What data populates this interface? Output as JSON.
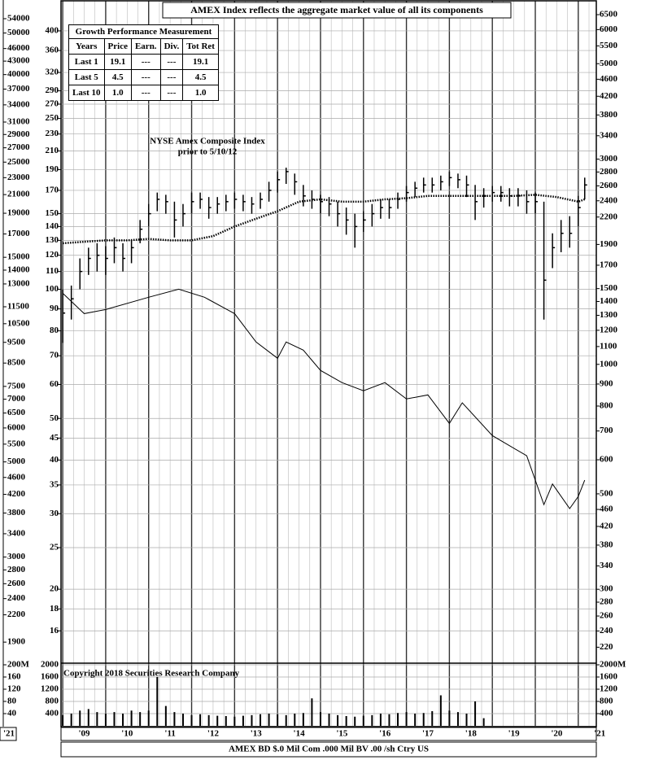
{
  "chart_data": {
    "type": "stock",
    "title": "AMEX Index reflects the aggregate market value of all its components",
    "annotation": [
      "NYSE Amex Composite Index",
      "prior to 5/10/12"
    ],
    "copyright": "Copyright 2018 Securities Research Company",
    "footer": "AMEX BD  $.0 Mil Com .000 Mil BV .00 /sh  Ctry US",
    "corner_label": "'21",
    "log_scale": true,
    "grid": true,
    "color": "#000000",
    "xlim": [
      2008.96,
      2021.42
    ],
    "xticks": [
      {
        "value": 2009,
        "label": "'09"
      },
      {
        "value": 2010,
        "label": "'10"
      },
      {
        "value": 2011,
        "label": "'11"
      },
      {
        "value": 2012,
        "label": "'12"
      },
      {
        "value": 2013,
        "label": "'13"
      },
      {
        "value": 2014,
        "label": "'14"
      },
      {
        "value": 2015,
        "label": "'15"
      },
      {
        "value": 2016,
        "label": "'16"
      },
      {
        "value": 2017,
        "label": "'17"
      },
      {
        "value": 2018,
        "label": "'18"
      },
      {
        "value": 2019,
        "label": "'19"
      },
      {
        "value": 2020,
        "label": "'20"
      },
      {
        "value": 2021,
        "label": "'21"
      }
    ],
    "ylim": [
      13.45,
      470
    ],
    "yticks": [
      400,
      360,
      320,
      290,
      270,
      250,
      230,
      210,
      190,
      170,
      150,
      140,
      130,
      120,
      110,
      100,
      90,
      80,
      70,
      60,
      50,
      45,
      40,
      35,
      30,
      25,
      20,
      18,
      16
    ],
    "y2lim": [
      202,
      7000
    ],
    "y2ticks": [
      6500,
      6000,
      5500,
      5000,
      4600,
      4200,
      3800,
      3400,
      3000,
      2800,
      2600,
      2400,
      2200,
      1900,
      1700,
      1500,
      1400,
      1300,
      1200,
      1100,
      1000,
      900,
      800,
      700,
      600,
      500,
      460,
      420,
      380,
      340,
      300,
      280,
      260,
      240,
      220
    ],
    "y3lim": [
      1697,
      59440
    ],
    "y3ticks": [
      54000,
      50000,
      46000,
      43000,
      40000,
      37000,
      34000,
      31000,
      29000,
      27000,
      25000,
      23000,
      21000,
      19000,
      17000,
      15000,
      14000,
      13000,
      11500,
      10500,
      9500,
      8500,
      7500,
      7000,
      6500,
      6000,
      5500,
      5000,
      4600,
      4200,
      3800,
      3400,
      3000,
      2800,
      2600,
      2400,
      2200,
      1900
    ],
    "x": [
      2009.0,
      2009.2,
      2009.4,
      2009.6,
      2009.8,
      2010.0,
      2010.2,
      2010.4,
      2010.6,
      2010.8,
      2011.0,
      2011.2,
      2011.4,
      2011.6,
      2011.8,
      2012.0,
      2012.2,
      2012.4,
      2012.6,
      2012.8,
      2013.0,
      2013.2,
      2013.4,
      2013.6,
      2013.8,
      2014.0,
      2014.2,
      2014.4,
      2014.6,
      2014.8,
      2015.0,
      2015.2,
      2015.4,
      2015.6,
      2015.8,
      2016.0,
      2016.2,
      2016.4,
      2016.6,
      2016.8,
      2017.0,
      2017.2,
      2017.4,
      2017.6,
      2017.8,
      2018.0,
      2018.2,
      2018.4,
      2018.6,
      2018.8,
      2019.0,
      2019.2,
      2019.4,
      2019.6,
      2019.8,
      2020.0,
      2020.2,
      2020.4,
      2020.6,
      2020.8,
      2021.0,
      2021.15
    ],
    "high": [
      100,
      102,
      118,
      125,
      128,
      126,
      132,
      128,
      130,
      145,
      158,
      168,
      166,
      160,
      158,
      168,
      168,
      164,
      164,
      166,
      168,
      166,
      164,
      168,
      178,
      188,
      192,
      186,
      175,
      170,
      166,
      164,
      160,
      155,
      150,
      152,
      158,
      162,
      162,
      168,
      174,
      178,
      182,
      182,
      184,
      188,
      186,
      184,
      175,
      172,
      174,
      174,
      172,
      172,
      170,
      168,
      160,
      135,
      145,
      148,
      165,
      182
    ],
    "low": [
      75,
      85,
      100,
      108,
      110,
      108,
      115,
      110,
      115,
      128,
      140,
      152,
      150,
      132,
      140,
      150,
      154,
      146,
      150,
      152,
      154,
      152,
      150,
      154,
      160,
      168,
      176,
      166,
      156,
      154,
      150,
      148,
      140,
      134,
      125,
      136,
      140,
      146,
      146,
      154,
      160,
      164,
      168,
      168,
      170,
      174,
      172,
      164,
      145,
      155,
      160,
      160,
      156,
      156,
      150,
      150,
      85,
      112,
      122,
      125,
      140,
      162
    ],
    "close": [
      88,
      95,
      110,
      118,
      120,
      118,
      125,
      118,
      125,
      138,
      150,
      162,
      160,
      145,
      150,
      160,
      162,
      155,
      158,
      160,
      162,
      160,
      158,
      162,
      170,
      180,
      188,
      178,
      165,
      162,
      160,
      158,
      150,
      145,
      140,
      145,
      150,
      155,
      155,
      162,
      168,
      172,
      175,
      175,
      178,
      182,
      180,
      175,
      160,
      165,
      168,
      168,
      165,
      165,
      160,
      160,
      105,
      125,
      135,
      135,
      155,
      175
    ],
    "ma": {
      "x": [
        2009,
        2009.5,
        2010,
        2010.5,
        2011,
        2011.5,
        2012,
        2012.5,
        2013,
        2013.5,
        2014,
        2014.5,
        2015,
        2015.5,
        2016,
        2016.5,
        2017,
        2017.5,
        2018,
        2018.5,
        2019,
        2019.5,
        2020,
        2020.5,
        2021,
        2021.15
      ],
      "values": [
        128,
        129,
        130,
        130,
        131,
        130,
        130,
        133,
        140,
        146,
        152,
        160,
        162,
        160,
        160,
        162,
        163,
        165,
        165,
        165,
        165,
        165,
        166,
        164,
        160,
        162
      ]
    },
    "rs": {
      "axis": "y2",
      "x": [
        2009.0,
        2009.5,
        2010.0,
        2011.0,
        2011.7,
        2012.3,
        2013.0,
        2013.5,
        2014.0,
        2014.2,
        2014.6,
        2015.0,
        2015.5,
        2016.0,
        2016.5,
        2017.0,
        2017.5,
        2018.0,
        2018.3,
        2019.0,
        2019.8,
        2020.2,
        2020.4,
        2020.8,
        2021.0,
        2021.15
      ],
      "values": [
        1463,
        1312,
        1341,
        1432,
        1495,
        1432,
        1312,
        1127,
        1033,
        1127,
        1079,
        968,
        907,
        868,
        907,
        831,
        849,
        729,
        814,
        683,
        613,
        472,
        527,
        462,
        493,
        538
      ]
    },
    "volume": {
      "ylim": [
        0,
        2000
      ],
      "yticks": [
        2000,
        1600,
        1200,
        800,
        400
      ],
      "y2ticks": [
        {
          "value": 2000,
          "label": "2000M"
        },
        1600,
        1200,
        800,
        400
      ],
      "y3lim": [
        0,
        200
      ],
      "y3ticks": [
        {
          "value": 200,
          "label": "200M"
        },
        160,
        120,
        80,
        40
      ],
      "x": [
        2009.0,
        2009.2,
        2009.4,
        2009.6,
        2009.8,
        2010.0,
        2010.2,
        2010.4,
        2010.6,
        2010.8,
        2011.0,
        2011.2,
        2011.4,
        2011.6,
        2011.8,
        2012.0,
        2012.2,
        2012.4,
        2012.6,
        2012.8,
        2013.0,
        2013.2,
        2013.4,
        2013.6,
        2013.8,
        2014.0,
        2014.2,
        2014.4,
        2014.6,
        2014.8,
        2015.0,
        2015.2,
        2015.4,
        2015.6,
        2015.8,
        2016.0,
        2016.2,
        2016.4,
        2016.6,
        2016.8,
        2017.0,
        2017.2,
        2017.4,
        2017.6,
        2017.8,
        2018.0,
        2018.2,
        2018.4,
        2018.6,
        2018.8
      ],
      "values": [
        350,
        400,
        500,
        550,
        450,
        400,
        450,
        400,
        500,
        450,
        500,
        1600,
        650,
        450,
        400,
        350,
        380,
        350,
        330,
        320,
        300,
        330,
        350,
        380,
        400,
        380,
        350,
        400,
        420,
        900,
        450,
        400,
        350,
        320,
        300,
        330,
        350,
        400,
        380,
        420,
        450,
        400,
        420,
        480,
        1000,
        500,
        450,
        400,
        800,
        250
      ]
    }
  },
  "table": {
    "title": "Growth Performance Measurement",
    "header": [
      "Years",
      "Price",
      "Earn.",
      "Div.",
      "Tot Ret"
    ],
    "rows": [
      [
        "Last 1",
        "19.1",
        "---",
        "---",
        "19.1"
      ],
      [
        "Last 5",
        "4.5",
        "---",
        "---",
        "4.5"
      ],
      [
        "Last 10",
        "1.0",
        "---",
        "---",
        "1.0"
      ]
    ]
  }
}
